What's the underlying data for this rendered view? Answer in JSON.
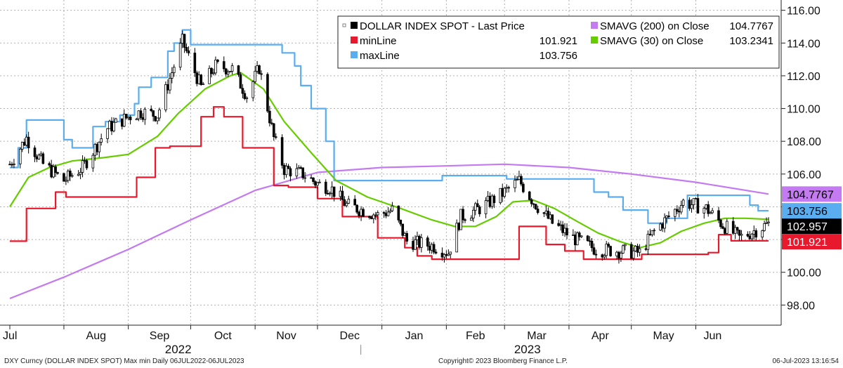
{
  "footer": {
    "left": "DXY Curncy (DOLLAR INDEX SPOT) Max min  Daily 06JUL2022-06JUL2023",
    "center": "Copyright© 2023 Bloomberg Finance L.P.",
    "right": "06-Jul-2023 13:16:54"
  },
  "chart_data": {
    "type": "line",
    "title": "",
    "ylim": [
      97.5,
      116.5
    ],
    "y_ticks": [
      "98.00",
      "100.00",
      "102.00",
      "104.00",
      "106.00",
      "108.00",
      "110.00",
      "112.00",
      "114.00",
      "116.00"
    ],
    "y_tick_values": [
      98,
      100,
      102,
      104,
      106,
      108,
      110,
      112,
      114,
      116
    ],
    "month_ticks": [
      {
        "label": "Jul",
        "x": "2022-07-06"
      },
      {
        "label": "Aug",
        "x": "2022-08-01"
      },
      {
        "label": "Sep",
        "x": "2022-09-01"
      },
      {
        "label": "Oct",
        "x": "2022-10-01"
      },
      {
        "label": "Nov",
        "x": "2022-11-01"
      },
      {
        "label": "Dec",
        "x": "2022-12-01"
      },
      {
        "label": "Jan",
        "x": "2023-01-01"
      },
      {
        "label": "Feb",
        "x": "2023-02-01"
      },
      {
        "label": "Mar",
        "x": "2023-03-01"
      },
      {
        "label": "Apr",
        "x": "2023-04-01"
      },
      {
        "label": "May",
        "x": "2023-05-01"
      },
      {
        "label": "Jun",
        "x": "2023-06-01"
      }
    ],
    "years": [
      {
        "label": "2022",
        "x": "2022-09-25"
      },
      {
        "label": "2023",
        "x": "2023-03-12"
      }
    ],
    "legend": [
      {
        "label": "DOLLAR INDEX SPOT - Last Price",
        "value": "",
        "color": "#000000"
      },
      {
        "label": "minLine",
        "value": "101.921",
        "color": "#e8192c"
      },
      {
        "label": "maxLine",
        "value": "103.756",
        "color": "#5aaef0"
      },
      {
        "label": "SMAVG (200)  on Close",
        "value": "104.7767",
        "color": "#c47af0"
      },
      {
        "label": "SMAVG (30)  on Close",
        "value": "103.2341",
        "color": "#66cc00"
      }
    ],
    "last_value_badges": [
      {
        "text": "104.7767",
        "value": 104.7767,
        "color": "#c47af0",
        "text_color": "#000000"
      },
      {
        "text": "103.756",
        "value": 103.756,
        "color": "#5aaef0",
        "text_color": "#000000"
      },
      {
        "text": "102.957",
        "value": 102.957,
        "color": "#000000",
        "text_color": "#ffffff"
      },
      {
        "text": "101.921",
        "value": 101.921,
        "color": "#e8192c",
        "text_color": "#ffffff"
      }
    ],
    "series": [
      {
        "name": "DOLLAR INDEX SPOT - Last Price",
        "color": "#000000",
        "x": [
          "2022-07-06",
          "2022-07-14",
          "2022-07-22",
          "2022-08-01",
          "2022-08-10",
          "2022-08-22",
          "2022-09-01",
          "2022-09-07",
          "2022-09-15",
          "2022-09-27",
          "2022-10-06",
          "2022-10-13",
          "2022-10-21",
          "2022-10-28",
          "2022-11-03",
          "2022-11-10",
          "2022-11-15",
          "2022-11-24",
          "2022-12-01",
          "2022-12-07",
          "2022-12-15",
          "2022-12-30",
          "2023-01-06",
          "2023-01-13",
          "2023-01-26",
          "2023-02-02",
          "2023-02-08",
          "2023-02-17",
          "2023-02-28",
          "2023-03-08",
          "2023-03-15",
          "2023-03-24",
          "2023-04-03",
          "2023-04-14",
          "2023-04-26",
          "2023-05-05",
          "2023-05-12",
          "2023-05-26",
          "2023-06-06",
          "2023-06-14",
          "2023-06-22",
          "2023-07-06"
        ],
        "y": [
          106.6,
          108.2,
          106.6,
          105.6,
          106.4,
          108.8,
          109.5,
          109.8,
          109.6,
          114.1,
          111.3,
          112.6,
          112.4,
          110.8,
          112.5,
          108.2,
          106.3,
          106.0,
          105.4,
          105.2,
          104.1,
          103.5,
          103.8,
          101.9,
          101.6,
          101.2,
          103.4,
          103.9,
          104.8,
          105.6,
          104.3,
          103.0,
          102.1,
          101.4,
          101.3,
          101.2,
          102.5,
          104.3,
          103.9,
          102.9,
          102.1,
          102.957
        ]
      },
      {
        "name": "minLine",
        "color": "#e8192c",
        "x": [
          "2022-07-06",
          "2022-07-14",
          "2022-07-14",
          "2022-07-28",
          "2022-07-28",
          "2022-08-02",
          "2022-08-02",
          "2022-09-05",
          "2022-09-05",
          "2022-09-14",
          "2022-09-14",
          "2022-09-21",
          "2022-09-21",
          "2022-10-06",
          "2022-10-06",
          "2022-10-12",
          "2022-10-12",
          "2022-10-17",
          "2022-10-17",
          "2022-10-26",
          "2022-10-26",
          "2022-11-10",
          "2022-11-10",
          "2022-11-17",
          "2022-11-17",
          "2022-12-01",
          "2022-12-01",
          "2022-12-13",
          "2022-12-13",
          "2022-12-30",
          "2022-12-30",
          "2023-01-12",
          "2023-01-12",
          "2023-01-18",
          "2023-01-18",
          "2023-01-25",
          "2023-01-25",
          "2023-03-08",
          "2023-03-08",
          "2023-03-21",
          "2023-03-21",
          "2023-03-30",
          "2023-03-30",
          "2023-04-08",
          "2023-04-08",
          "2023-04-25",
          "2023-04-25",
          "2023-05-06",
          "2023-05-06",
          "2023-06-07",
          "2023-06-07",
          "2023-06-12",
          "2023-06-12",
          "2023-06-18",
          "2023-06-18",
          "2023-07-06"
        ],
        "y": [
          101.9,
          101.9,
          103.9,
          103.9,
          104.9,
          104.9,
          104.6,
          104.6,
          105.8,
          105.8,
          107.6,
          107.6,
          107.7,
          107.7,
          109.5,
          109.5,
          110.1,
          110.1,
          109.5,
          109.5,
          107.6,
          107.6,
          105.3,
          105.3,
          105.2,
          105.2,
          104.5,
          104.5,
          103.4,
          103.4,
          102.1,
          102.1,
          101.5,
          101.5,
          101.0,
          101.0,
          100.8,
          100.8,
          102.8,
          102.8,
          101.7,
          101.7,
          101.3,
          101.3,
          100.8,
          100.8,
          100.8,
          100.8,
          101.1,
          101.1,
          101.2,
          101.2,
          102.3,
          102.3,
          101.921,
          101.921
        ]
      },
      {
        "name": "maxLine",
        "color": "#5aaef0",
        "x": [
          "2022-07-06",
          "2022-07-10",
          "2022-07-10",
          "2022-07-14",
          "2022-07-14",
          "2022-08-01",
          "2022-08-01",
          "2022-08-05",
          "2022-08-05",
          "2022-08-15",
          "2022-08-15",
          "2022-08-21",
          "2022-08-21",
          "2022-08-28",
          "2022-08-28",
          "2022-09-04",
          "2022-09-04",
          "2022-09-06",
          "2022-09-06",
          "2022-09-12",
          "2022-09-12",
          "2022-09-20",
          "2022-09-20",
          "2022-09-23",
          "2022-09-23",
          "2022-09-27",
          "2022-09-27",
          "2022-10-01",
          "2022-10-01",
          "2022-10-18",
          "2022-10-18",
          "2022-11-14",
          "2022-11-14",
          "2022-11-20",
          "2022-11-20",
          "2022-11-23",
          "2022-11-23",
          "2022-11-28",
          "2022-11-28",
          "2022-12-05",
          "2022-12-05",
          "2022-12-09",
          "2022-12-09",
          "2023-01-30",
          "2023-01-30",
          "2023-03-02",
          "2023-03-02",
          "2023-04-13",
          "2023-04-13",
          "2023-04-20",
          "2023-04-20",
          "2023-04-27",
          "2023-04-27",
          "2023-05-09",
          "2023-05-09",
          "2023-05-18",
          "2023-05-18",
          "2023-05-28",
          "2023-05-28",
          "2023-06-27",
          "2023-06-27",
          "2023-07-01",
          "2023-07-01",
          "2023-07-06"
        ],
        "y": [
          106.4,
          106.4,
          107.6,
          107.6,
          109.3,
          109.3,
          108.1,
          108.1,
          107.6,
          107.6,
          108.9,
          108.9,
          109.2,
          109.2,
          109.6,
          109.6,
          110.3,
          110.3,
          111.3,
          111.3,
          111.9,
          111.9,
          113.5,
          113.5,
          114.0,
          114.0,
          114.8,
          114.8,
          113.9,
          113.9,
          113.9,
          113.9,
          113.4,
          113.4,
          112.6,
          112.6,
          111.4,
          111.4,
          110.0,
          110.0,
          108.0,
          108.0,
          105.6,
          105.6,
          105.9,
          105.9,
          105.7,
          105.7,
          104.9,
          104.9,
          104.6,
          104.6,
          103.8,
          103.8,
          103.0,
          103.0,
          103.3,
          103.3,
          104.7,
          104.7,
          104.1,
          104.1,
          103.756,
          103.756
        ]
      },
      {
        "name": "SMAVG (200)  on Close",
        "color": "#c47af0",
        "x": [
          "2022-07-06",
          "2022-08-01",
          "2022-09-01",
          "2022-10-01",
          "2022-11-01",
          "2022-12-01",
          "2023-01-01",
          "2023-02-01",
          "2023-03-01",
          "2023-04-01",
          "2023-05-01",
          "2023-06-01",
          "2023-07-06"
        ],
        "y": [
          98.4,
          99.7,
          101.4,
          103.2,
          105.0,
          106.1,
          106.4,
          106.5,
          106.6,
          106.4,
          106.0,
          105.5,
          104.7767
        ]
      },
      {
        "name": "SMAVG (30)  on Close",
        "color": "#66cc00",
        "x": [
          "2022-07-06",
          "2022-07-15",
          "2022-07-25",
          "2022-08-05",
          "2022-08-20",
          "2022-09-01",
          "2022-09-15",
          "2022-09-25",
          "2022-10-08",
          "2022-10-20",
          "2022-10-25",
          "2022-11-05",
          "2022-11-15",
          "2022-11-28",
          "2022-12-10",
          "2022-12-25",
          "2023-01-10",
          "2023-01-25",
          "2023-02-05",
          "2023-02-15",
          "2023-02-25",
          "2023-03-05",
          "2023-03-15",
          "2023-03-25",
          "2023-04-05",
          "2023-04-15",
          "2023-04-25",
          "2023-05-05",
          "2023-05-15",
          "2023-05-25",
          "2023-06-05",
          "2023-06-15",
          "2023-06-25",
          "2023-07-06"
        ],
        "y": [
          104.0,
          105.8,
          106.4,
          106.8,
          107.0,
          107.2,
          108.3,
          109.7,
          111.2,
          112.0,
          112.2,
          111.2,
          109.2,
          107.3,
          105.6,
          104.6,
          103.9,
          103.2,
          102.8,
          102.8,
          103.4,
          104.3,
          104.4,
          103.9,
          103.1,
          102.4,
          101.9,
          101.5,
          101.8,
          102.5,
          103.0,
          103.3,
          103.3,
          103.2341
        ]
      }
    ]
  }
}
